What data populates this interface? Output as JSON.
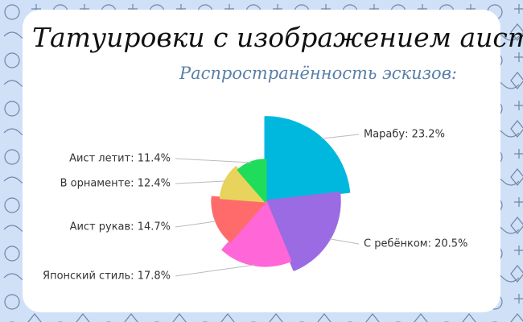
{
  "chart_data": {
    "type": "pie",
    "title": "Татуировки с изображением аиста",
    "subtitle": "Распространённость эскизов:",
    "values": [
      23.2,
      20.5,
      17.8,
      14.7,
      12.4,
      11.4
    ],
    "value_labels": [
      "Марабу: 23.2%",
      "С ребёнком: 20.5%",
      "Японский стиль: 17.8%",
      "Аист рукав: 14.7%",
      "В орнаменте: 12.4%",
      "Аист летит: 11.4%"
    ],
    "colors": [
      "#00b8de",
      "#9a6be3",
      "#ff66d8",
      "#ff6b6b",
      "#e8d35c",
      "#1fdd5a"
    ]
  }
}
